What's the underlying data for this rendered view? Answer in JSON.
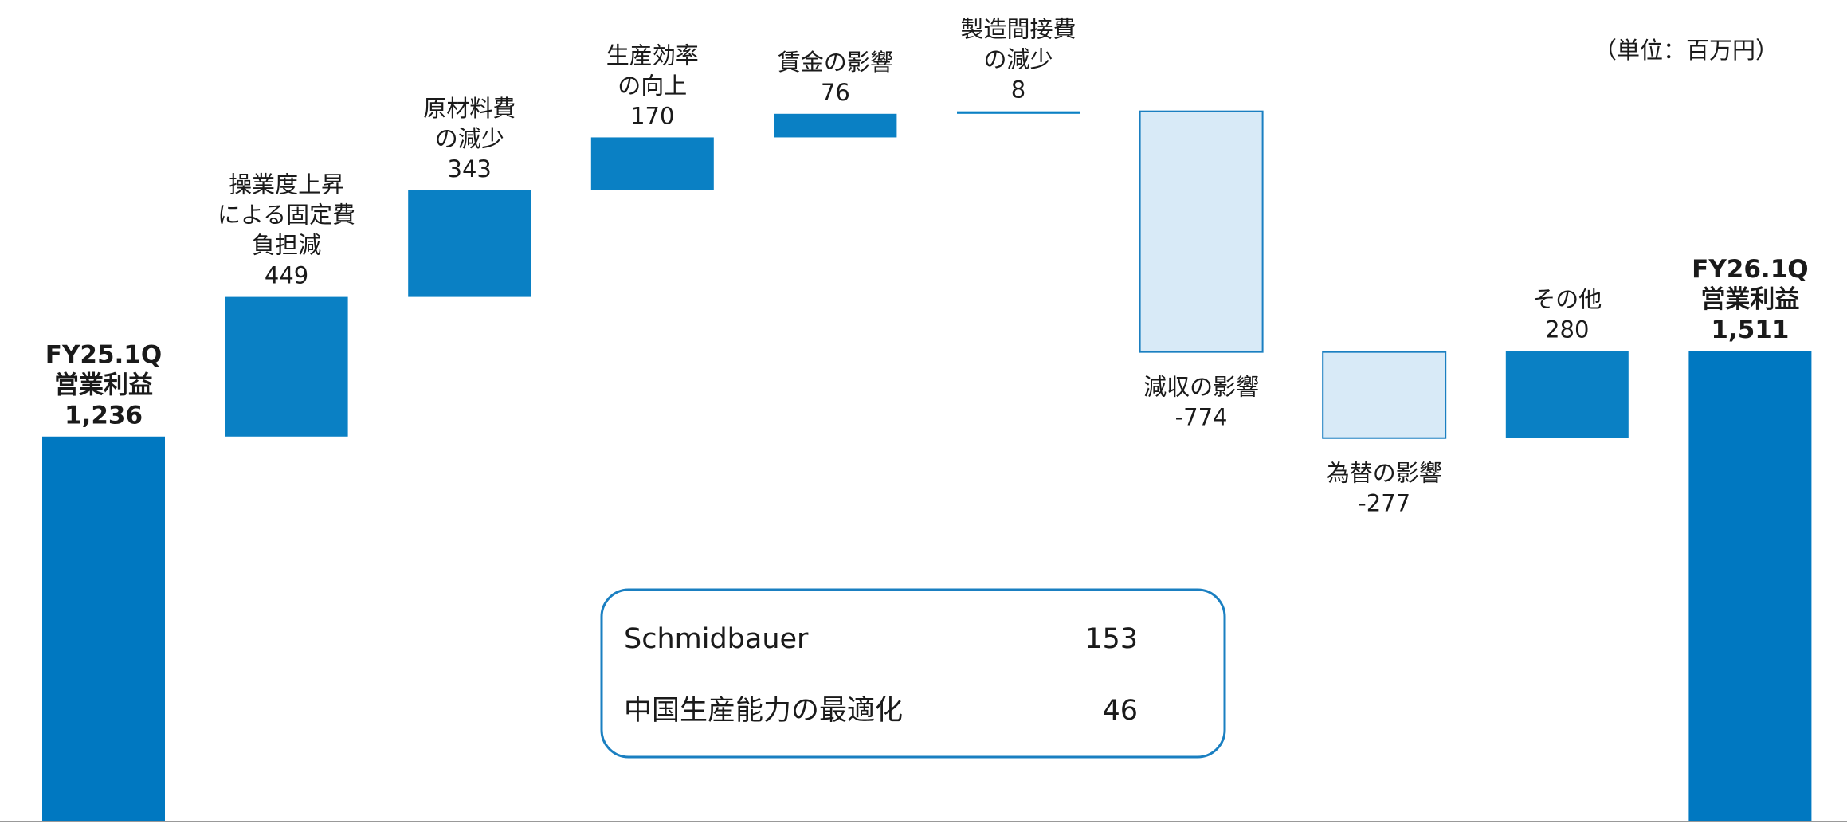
{
  "chart_data": {
    "type": "waterfall",
    "unit_label": "（単位：百万円）",
    "categories": [
      [
        "FY25.1Q",
        "営業利益"
      ],
      [
        "操業度上昇",
        "による固定費",
        "負担減"
      ],
      [
        "原材料費",
        "の減少"
      ],
      [
        "生産効率",
        "の向上"
      ],
      [
        "賃金の影響"
      ],
      [
        "製造間接費",
        "の減少"
      ],
      [
        "減収の影響"
      ],
      [
        "為替の影響"
      ],
      [
        "その他"
      ],
      [
        "FY26.1Q",
        "営業利益"
      ]
    ],
    "values": [
      1236,
      449,
      343,
      170,
      76,
      8,
      -774,
      -277,
      280,
      1511
    ],
    "value_labels": [
      "1,236",
      "449",
      "343",
      "170",
      "76",
      "8",
      "-774",
      "-277",
      "280",
      "1,511"
    ],
    "color": "#0a80c4",
    "total_color": "#0078c1",
    "negative_color": "#d8eaf7",
    "negative_stroke": "#1a7fc1",
    "ylim": [
      0,
      2640
    ],
    "breakdown": [
      {
        "name": "Schmidbauer",
        "value": 153
      },
      {
        "name": "中国生産能力の最適化",
        "value": 46
      }
    ]
  }
}
